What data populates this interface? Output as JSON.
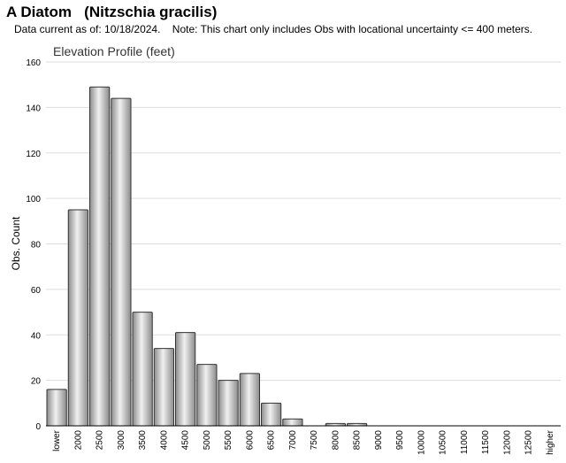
{
  "header": {
    "title": "A Diatom   (Nitzschia gracilis)",
    "note": "Data current as of: 10/18/2024.    Note: This chart only includes Obs with locational uncertainty <= 400 meters."
  },
  "chart_data": {
    "type": "bar",
    "title": "Elevation Profile (feet)",
    "xlabel": "",
    "ylabel": "Obs. Count",
    "ylim": [
      0,
      160
    ],
    "yticks": [
      0,
      20,
      40,
      60,
      80,
      100,
      120,
      140,
      160
    ],
    "grid": true,
    "categories": [
      "lower",
      "2000",
      "2500",
      "3000",
      "3500",
      "4000",
      "4500",
      "5000",
      "5500",
      "6000",
      "6500",
      "7000",
      "7500",
      "8000",
      "8500",
      "9000",
      "9500",
      "10000",
      "10500",
      "11000",
      "11500",
      "12000",
      "12500",
      "higher"
    ],
    "values": [
      16,
      95,
      149,
      144,
      50,
      34,
      41,
      27,
      20,
      23,
      10,
      3,
      0,
      1,
      1,
      0,
      0,
      0,
      0,
      0,
      0,
      0,
      0,
      0
    ],
    "colors": {
      "bar_fill_dark": "#8c8c8c",
      "bar_fill_light": "#f0f0f0",
      "bar_stroke": "#333333",
      "grid": "#dddddd"
    }
  }
}
